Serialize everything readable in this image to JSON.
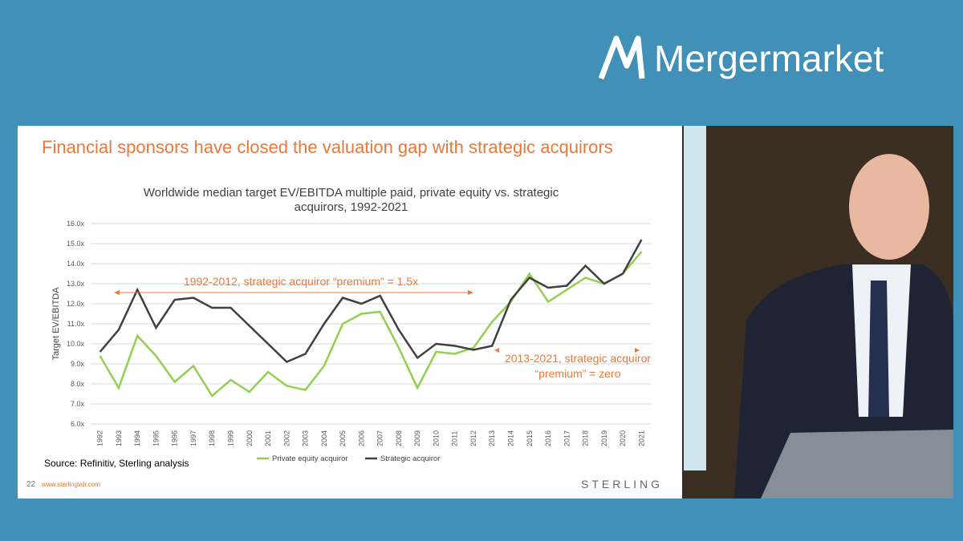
{
  "brand": "Mergermarket",
  "slide": {
    "title": "Financial sponsors have closed the valuation gap with strategic acquirors",
    "source": "Source: Refinitiv, Sterling analysis",
    "page_number": "22",
    "url": "www.sterlingvdr.com",
    "footer_brand": "STERLING"
  },
  "chart_data": {
    "type": "line",
    "title": "Worldwide median target EV/EBITDA multiple paid, private equity vs. strategic acquirors, 1992-2021",
    "y_label": "Target EV/EBITDA",
    "categories": [
      "1992",
      "1993",
      "1994",
      "1995",
      "1996",
      "1997",
      "1998",
      "1999",
      "2000",
      "2001",
      "2002",
      "2003",
      "2004",
      "2005",
      "2006",
      "2007",
      "2008",
      "2009",
      "2010",
      "2011",
      "2012",
      "2013",
      "2014",
      "2015",
      "2016",
      "2017",
      "2018",
      "2019",
      "2020",
      "2021"
    ],
    "series": [
      {
        "name": "Private equity acquiror",
        "color": "#92d050",
        "values": [
          9.4,
          7.8,
          10.4,
          9.4,
          8.1,
          8.9,
          7.4,
          8.2,
          7.6,
          8.6,
          7.9,
          7.7,
          8.9,
          11.0,
          11.5,
          11.6,
          9.8,
          7.8,
          9.6,
          9.5,
          9.8,
          11.1,
          12.1,
          13.5,
          12.1,
          12.7,
          13.3,
          13.0,
          13.5,
          14.6
        ]
      },
      {
        "name": "Strategic acquiror",
        "color": "#404040",
        "values": [
          9.6,
          10.7,
          12.7,
          10.8,
          12.2,
          12.3,
          11.8,
          11.8,
          10.9,
          10.0,
          9.1,
          9.5,
          11.0,
          12.3,
          12.0,
          12.4,
          10.7,
          9.3,
          10.0,
          9.9,
          9.7,
          9.9,
          12.2,
          13.3,
          12.8,
          12.9,
          13.9,
          13.0,
          13.5,
          15.2
        ]
      }
    ],
    "ylim": [
      6,
      16
    ],
    "yticks": [
      {
        "value": 6,
        "label": "6.0x"
      },
      {
        "value": 7,
        "label": "7.0x"
      },
      {
        "value": 8,
        "label": "8.0x"
      },
      {
        "value": 9,
        "label": "9.0x"
      },
      {
        "value": 10,
        "label": "10.0x"
      },
      {
        "value": 11,
        "label": "11.0x"
      },
      {
        "value": 12,
        "label": "12.0x"
      },
      {
        "value": 13,
        "label": "13.0x"
      },
      {
        "value": 14,
        "label": "14.0x"
      },
      {
        "value": 15,
        "label": "15.0x"
      },
      {
        "value": 16,
        "label": "16.0x"
      }
    ],
    "grid": true,
    "annotations": [
      "1992-2012, strategic acquiror “premium” = 1.5x",
      "2013-2021, strategic acquiror “premium” = zero"
    ]
  }
}
